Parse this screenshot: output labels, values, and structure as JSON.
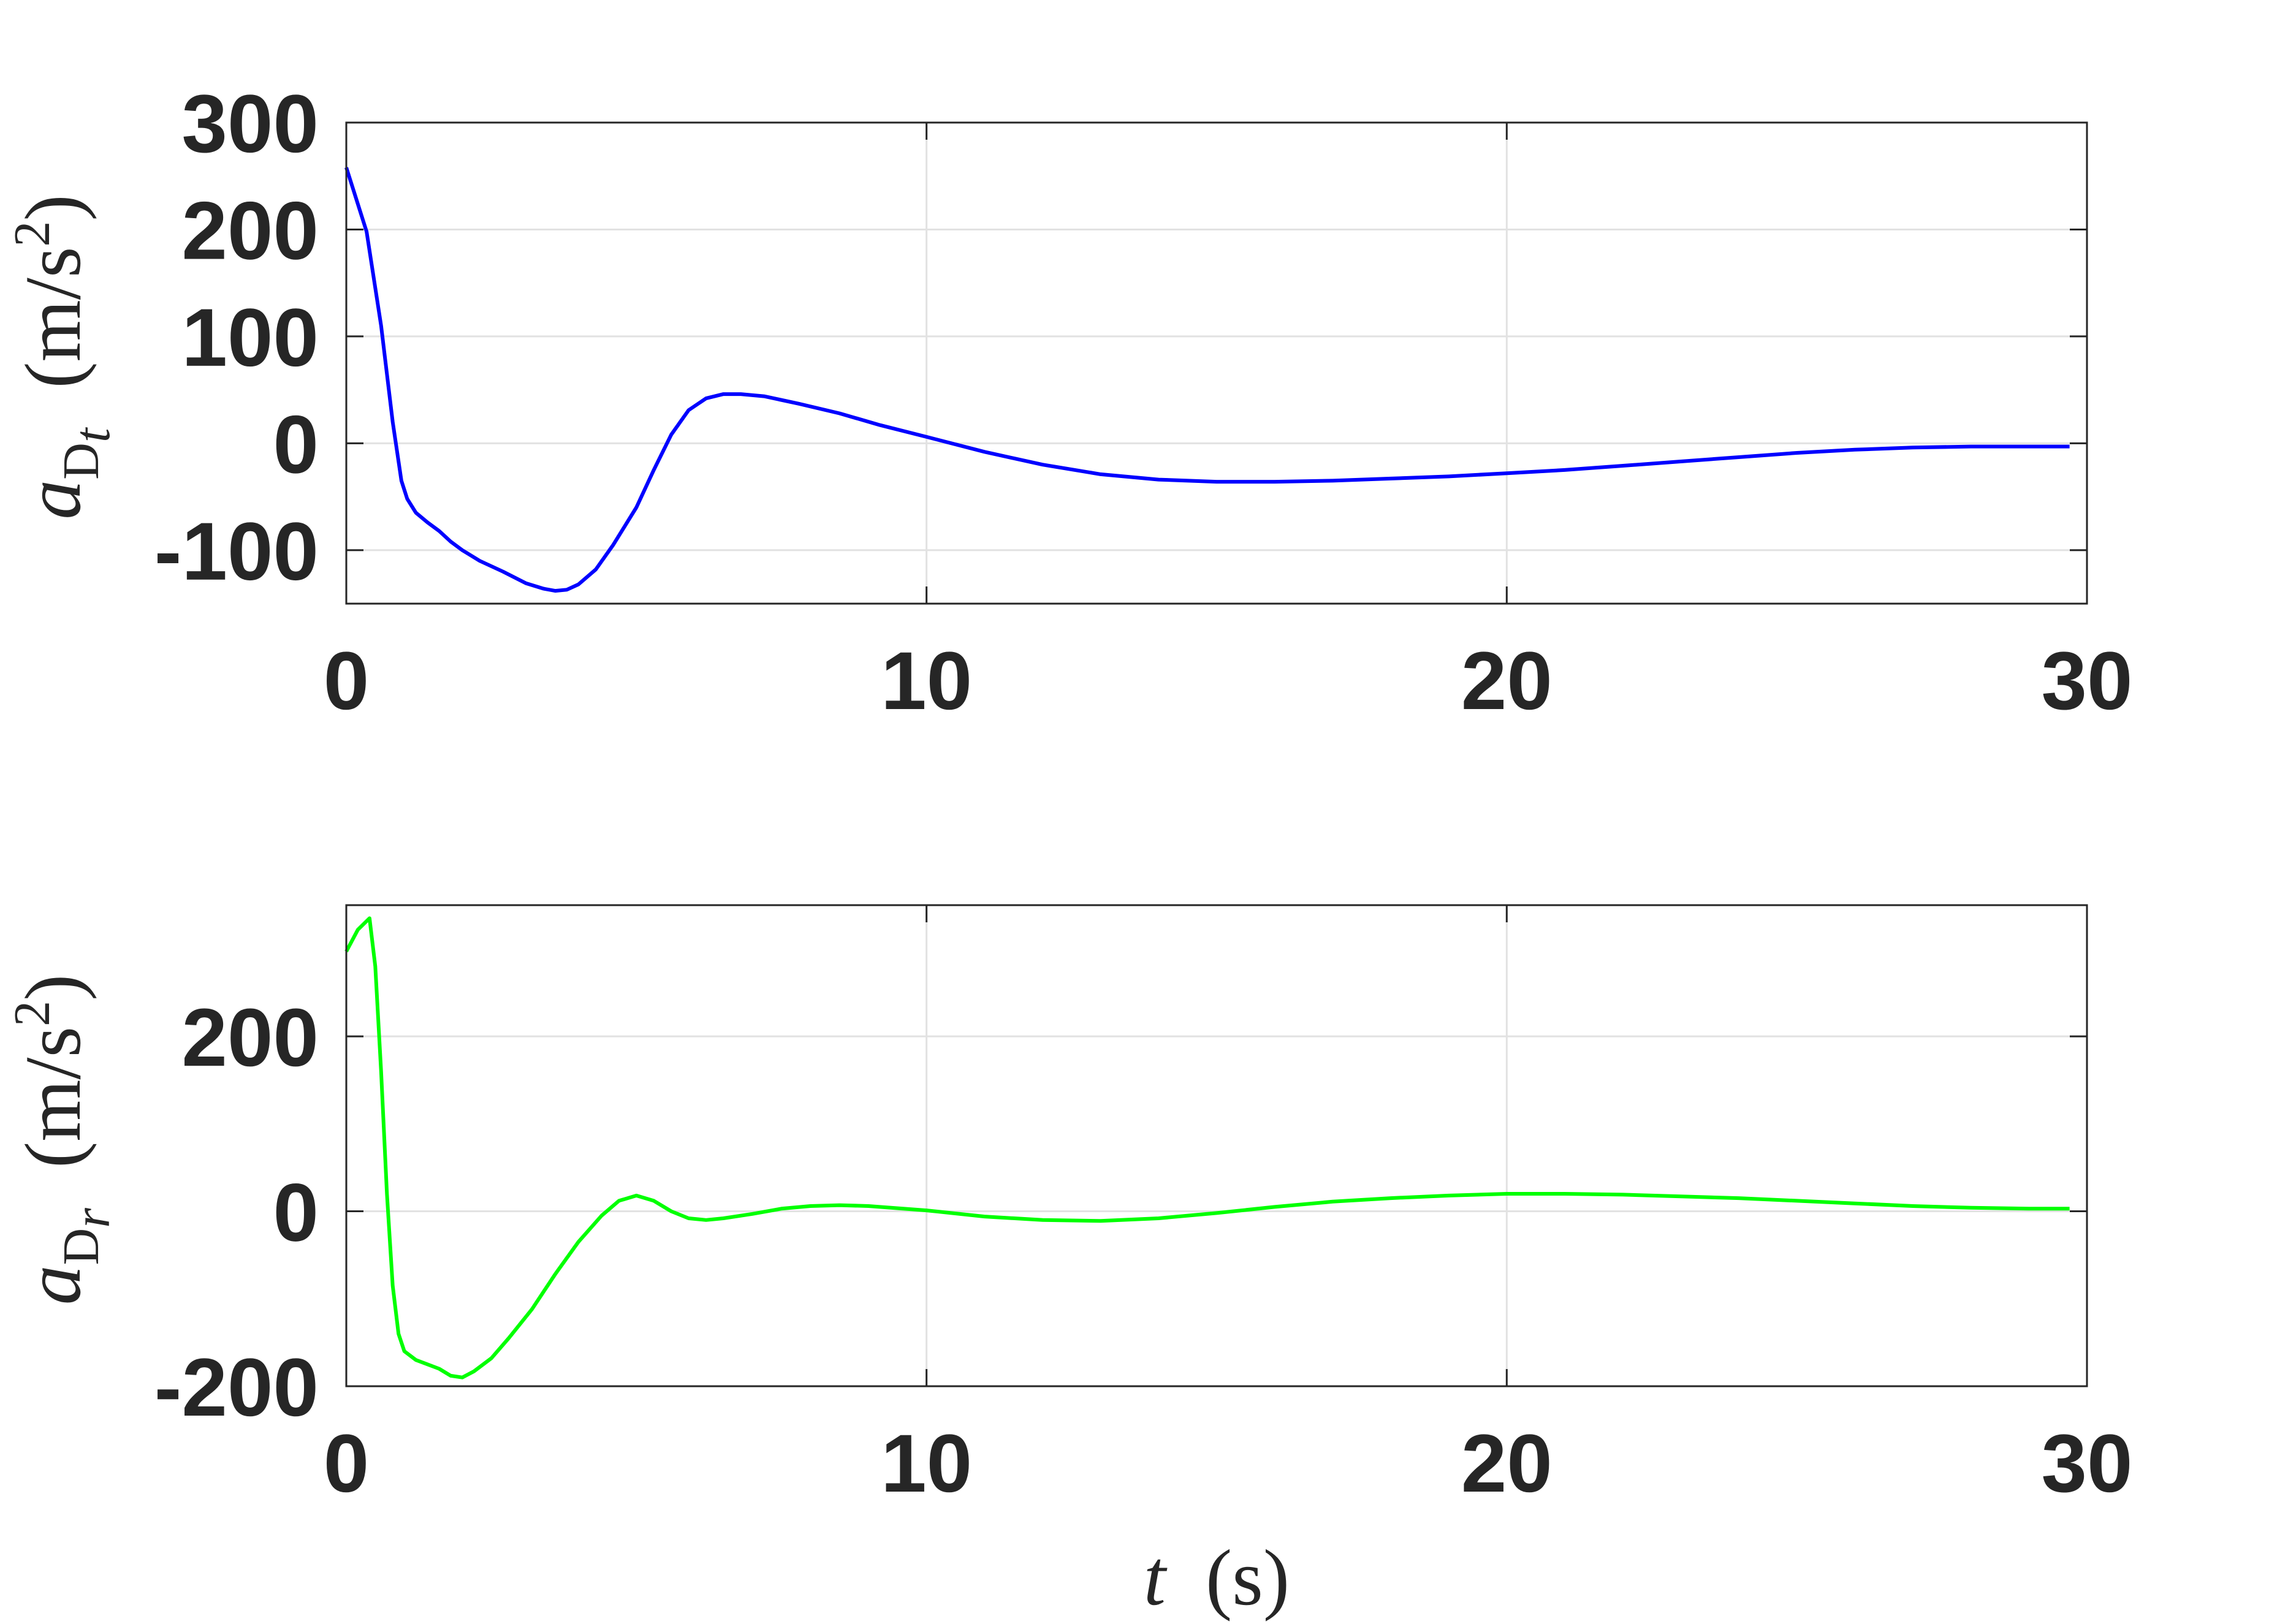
{
  "chart_data": [
    {
      "type": "line",
      "ylabel": "a_{D_t} (m/s^2)",
      "ylabel_parts": {
        "symbol": "a",
        "sub1": "D",
        "sub2": "t",
        "units_open": "(m/s",
        "units_exp": "2",
        "units_close": ")"
      },
      "xlim": [
        0,
        30
      ],
      "ylim": [
        -150,
        300
      ],
      "xticks": [
        0,
        10,
        20,
        30
      ],
      "xtick_labels": [
        "0",
        "10",
        "20",
        "30"
      ],
      "yticks": [
        -100,
        0,
        100,
        200,
        300
      ],
      "ytick_labels": [
        "-100",
        "0",
        "100",
        "200",
        "300"
      ],
      "grid": true,
      "series": [
        {
          "color": "#0000ff",
          "x": [
            0,
            0.35,
            0.6,
            0.8,
            0.95,
            1.05,
            1.2,
            1.4,
            1.6,
            1.8,
            2.0,
            2.3,
            2.7,
            3.1,
            3.4,
            3.6,
            3.8,
            4.0,
            4.3,
            4.6,
            5.0,
            5.3,
            5.6,
            5.9,
            6.2,
            6.5,
            6.8,
            7.2,
            7.8,
            8.5,
            9.2,
            10,
            11,
            12,
            13,
            14,
            15,
            16,
            17,
            18,
            19,
            20,
            21,
            22,
            23,
            24,
            25,
            26,
            27,
            28,
            29,
            29.7
          ],
          "y": [
            258,
            198,
            110,
            20,
            -35,
            -52,
            -65,
            -74,
            -82,
            -92,
            -100,
            -110,
            -120,
            -131,
            -136,
            -138,
            -137,
            -132,
            -118,
            -95,
            -60,
            -25,
            8,
            31,
            42,
            46,
            46,
            44,
            37,
            28,
            17,
            6,
            -8,
            -20,
            -29,
            -34,
            -36,
            -36,
            -35,
            -33,
            -31,
            -28,
            -25,
            -21,
            -17,
            -13,
            -9,
            -6,
            -4,
            -3,
            -3,
            -3
          ]
        }
      ]
    },
    {
      "type": "line",
      "xlabel": "t (s)",
      "xlabel_parts": {
        "symbol": "t",
        "units": "(s)"
      },
      "ylabel": "a_{D_r} (m/s^2)",
      "ylabel_parts": {
        "symbol": "a",
        "sub1": "D",
        "sub2": "r",
        "units_open": "(m/s",
        "units_exp": "2",
        "units_close": ")"
      },
      "xlim": [
        0,
        30
      ],
      "ylim": [
        -200,
        350
      ],
      "xticks": [
        0,
        10,
        20,
        30
      ],
      "xtick_labels": [
        "0",
        "10",
        "20",
        "30"
      ],
      "yticks": [
        -200,
        0,
        200
      ],
      "ytick_labels": [
        "-200",
        "0",
        "200"
      ],
      "grid": true,
      "series": [
        {
          "color": "#00ff00",
          "x": [
            0,
            0.2,
            0.4,
            0.5,
            0.6,
            0.7,
            0.8,
            0.9,
            1.0,
            1.2,
            1.4,
            1.6,
            1.8,
            2.0,
            2.2,
            2.5,
            2.8,
            3.2,
            3.6,
            4.0,
            4.4,
            4.7,
            5.0,
            5.3,
            5.6,
            5.9,
            6.2,
            6.5,
            7.0,
            7.5,
            8.0,
            8.5,
            9.0,
            10,
            11,
            12,
            13,
            14,
            15,
            16,
            17,
            18,
            19,
            20,
            21,
            22,
            23,
            24,
            25,
            26,
            27,
            28,
            29,
            29.7
          ],
          "y": [
            297,
            322,
            335,
            280,
            160,
            20,
            -85,
            -140,
            -160,
            -170,
            -175,
            -180,
            -188,
            -190,
            -183,
            -168,
            -145,
            -112,
            -72,
            -35,
            -5,
            12,
            18,
            12,
            0,
            -8,
            -10,
            -8,
            -3,
            3,
            6,
            7,
            6,
            1,
            -6,
            -10,
            -11,
            -8,
            -2,
            5,
            11,
            15,
            18,
            20,
            20,
            19,
            17,
            15,
            12,
            9,
            6,
            4,
            3,
            3
          ]
        }
      ]
    }
  ]
}
